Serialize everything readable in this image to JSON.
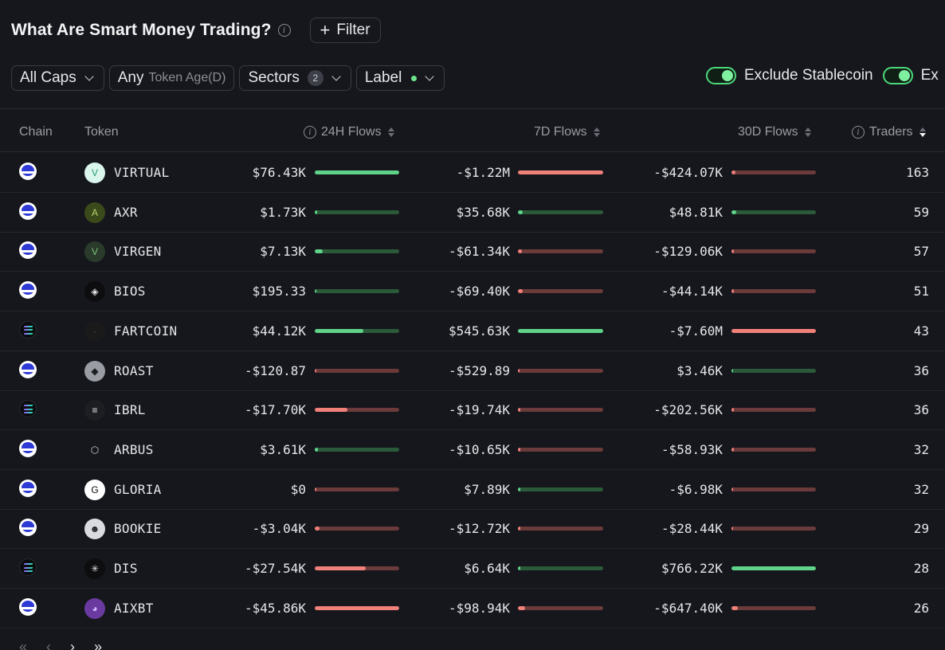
{
  "header": {
    "title": "What Are Smart Money Trading?",
    "filter_label": "Filter"
  },
  "filters": {
    "caps": "All Caps",
    "token_age_value": "Any",
    "token_age_label": "Token Age(D)",
    "sectors": "Sectors",
    "sectors_count": "2",
    "label": "Label"
  },
  "toggles": [
    {
      "label": "Exclude Stablecoin",
      "on": true
    },
    {
      "label": "Ex",
      "on": true
    }
  ],
  "columns": {
    "chain": "Chain",
    "token": "Token",
    "flows_24h": "24H Flows",
    "flows_7d": "7D Flows",
    "flows_30d": "30D Flows",
    "traders": "Traders"
  },
  "rows": [
    {
      "chain": "base",
      "token": "VIRTUAL",
      "f24": "$76.43K",
      "f24_sign": "pos",
      "f24_fill": 1.0,
      "f7": "-$1.22M",
      "f7_sign": "neg",
      "f7_fill": 1.0,
      "f30": "-$424.07K",
      "f30_sign": "neg",
      "f30_fill": 0.05,
      "traders": "163"
    },
    {
      "chain": "base",
      "token": "AXR",
      "f24": "$1.73K",
      "f24_sign": "pos",
      "f24_fill": 0.02,
      "f7": "$35.68K",
      "f7_sign": "pos",
      "f7_fill": 0.06,
      "f30": "$48.81K",
      "f30_sign": "pos",
      "f30_fill": 0.06,
      "traders": "59"
    },
    {
      "chain": "base",
      "token": "VIRGEN",
      "f24": "$7.13K",
      "f24_sign": "pos",
      "f24_fill": 0.09,
      "f7": "-$61.34K",
      "f7_sign": "neg",
      "f7_fill": 0.05,
      "f30": "-$129.06K",
      "f30_sign": "neg",
      "f30_fill": 0.02,
      "traders": "57"
    },
    {
      "chain": "base",
      "token": "BIOS",
      "f24": "$195.33",
      "f24_sign": "pos",
      "f24_fill": 0.0,
      "f7": "-$69.40K",
      "f7_sign": "neg",
      "f7_fill": 0.06,
      "f30": "-$44.14K",
      "f30_sign": "neg",
      "f30_fill": 0.01,
      "traders": "51"
    },
    {
      "chain": "sol",
      "token": "FARTCOIN",
      "f24": "$44.12K",
      "f24_sign": "pos",
      "f24_fill": 0.58,
      "f7": "$545.63K",
      "f7_sign": "pos",
      "f7_fill": 1.0,
      "f30": "-$7.60M",
      "f30_sign": "neg",
      "f30_fill": 1.0,
      "traders": "43"
    },
    {
      "chain": "base",
      "token": "ROAST",
      "f24": "-$120.87",
      "f24_sign": "neg",
      "f24_fill": 0.0,
      "f7": "-$529.89",
      "f7_sign": "neg",
      "f7_fill": 0.0,
      "f30": "$3.46K",
      "f30_sign": "pos",
      "f30_fill": 0.0,
      "traders": "36"
    },
    {
      "chain": "sol",
      "token": "IBRL",
      "f24": "-$17.70K",
      "f24_sign": "neg",
      "f24_fill": 0.39,
      "f7": "-$19.74K",
      "f7_sign": "neg",
      "f7_fill": 0.02,
      "f30": "-$202.56K",
      "f30_sign": "neg",
      "f30_fill": 0.02,
      "traders": "36"
    },
    {
      "chain": "base",
      "token": "ARBUS",
      "f24": "$3.61K",
      "f24_sign": "pos",
      "f24_fill": 0.04,
      "f7": "-$10.65K",
      "f7_sign": "neg",
      "f7_fill": 0.01,
      "f30": "-$58.93K",
      "f30_sign": "neg",
      "f30_fill": 0.01,
      "traders": "32"
    },
    {
      "chain": "base",
      "token": "GLORIA",
      "f24": "$0",
      "f24_sign": "neg",
      "f24_fill": 0.0,
      "f7": "$7.89K",
      "f7_sign": "pos",
      "f7_fill": 0.01,
      "f30": "-$6.98K",
      "f30_sign": "neg",
      "f30_fill": 0.0,
      "traders": "32"
    },
    {
      "chain": "base",
      "token": "BOOKIE",
      "f24": "-$3.04K",
      "f24_sign": "neg",
      "f24_fill": 0.06,
      "f7": "-$12.72K",
      "f7_sign": "neg",
      "f7_fill": 0.01,
      "f30": "-$28.44K",
      "f30_sign": "neg",
      "f30_fill": 0.0,
      "traders": "29"
    },
    {
      "chain": "sol",
      "token": "DIS",
      "f24": "-$27.54K",
      "f24_sign": "neg",
      "f24_fill": 0.6,
      "f7": "$6.64K",
      "f7_sign": "pos",
      "f7_fill": 0.01,
      "f30": "$766.22K",
      "f30_sign": "pos",
      "f30_fill": 1.0,
      "traders": "28"
    },
    {
      "chain": "base",
      "token": "AIXBT",
      "f24": "-$45.86K",
      "f24_sign": "neg",
      "f24_fill": 1.0,
      "f7": "-$98.94K",
      "f7_sign": "neg",
      "f7_fill": 0.08,
      "f30": "-$647.40K",
      "f30_sign": "neg",
      "f30_fill": 0.08,
      "traders": "26"
    }
  ],
  "token_icons": {
    "VIRTUAL": {
      "bg": "#d9f5ec",
      "fg": "#2a9c7a",
      "glyph": "V"
    },
    "AXR": {
      "bg": "#3a4a1a",
      "fg": "#b8d26a",
      "glyph": "A"
    },
    "VIRGEN": {
      "bg": "#2b3b2b",
      "fg": "#78c27a",
      "glyph": "V"
    },
    "BIOS": {
      "bg": "#0d0d0f",
      "fg": "#e6e7ea",
      "glyph": "◈"
    },
    "FARTCOIN": {
      "bg": "#1a1a1a",
      "fg": "#555555",
      "glyph": "·"
    },
    "ROAST": {
      "bg": "#9a9ca3",
      "fg": "#1d1e22",
      "glyph": "◆"
    },
    "IBRL": {
      "bg": "#1d1e22",
      "fg": "#e6e7ea",
      "glyph": "≡"
    },
    "ARBUS": {
      "bg": "#16171c",
      "fg": "#d0d2d6",
      "glyph": "⬡"
    },
    "GLORIA": {
      "bg": "#ffffff",
      "fg": "#0d0d0f",
      "glyph": "G"
    },
    "BOOKIE": {
      "bg": "#d9dbe0",
      "fg": "#1d1e22",
      "glyph": "☻"
    },
    "DIS": {
      "bg": "#0d0d0f",
      "fg": "#e6e7ea",
      "glyph": "✳"
    },
    "AIXBT": {
      "bg": "#6a3aa0",
      "fg": "#d8b8ff",
      "glyph": "◕"
    }
  },
  "pager": {
    "first": "«",
    "prev": "‹",
    "next": "›",
    "last": "»"
  }
}
